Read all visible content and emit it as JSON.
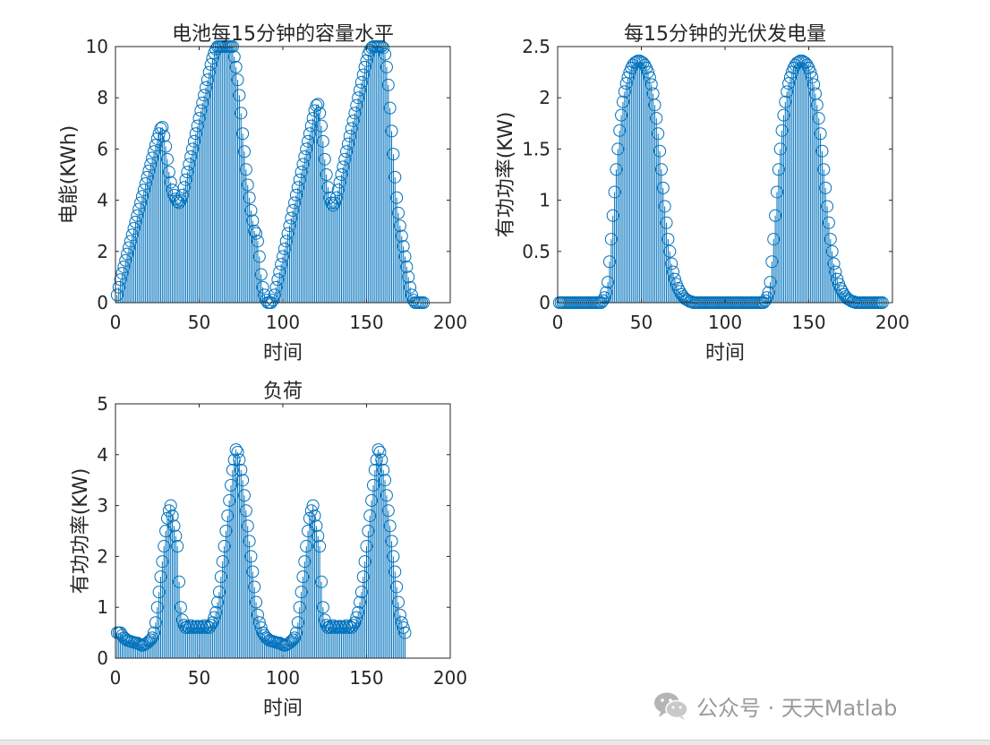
{
  "chart_data": [
    {
      "type": "stem",
      "title": "电池每15分钟的容量水平",
      "xlabel": "时间",
      "ylabel": "电能(KWh)",
      "xlim": [
        0,
        200
      ],
      "ylim": [
        0,
        10
      ],
      "xticks": [
        0,
        50,
        100,
        150,
        200
      ],
      "yticks": [
        0,
        2,
        4,
        6,
        8,
        10
      ],
      "color": "#0072BD",
      "marker": "circle",
      "y": [
        0.3,
        0.6,
        0.9,
        1.15,
        1.4,
        1.65,
        1.9,
        2.15,
        2.4,
        2.65,
        2.9,
        3.15,
        3.4,
        3.65,
        3.9,
        4.15,
        4.4,
        4.65,
        4.9,
        5.15,
        5.4,
        5.65,
        5.9,
        6.15,
        6.4,
        6.6,
        6.8,
        6.85,
        6.5,
        6.1,
        5.6,
        5.1,
        4.7,
        4.4,
        4.2,
        4.05,
        3.95,
        3.9,
        4.0,
        4.2,
        4.5,
        4.8,
        5.1,
        5.4,
        5.7,
        6.0,
        6.3,
        6.6,
        6.9,
        7.2,
        7.5,
        7.8,
        8.1,
        8.4,
        8.7,
        9.0,
        9.3,
        9.55,
        9.75,
        9.9,
        10.0,
        10.0,
        10.0,
        10.0,
        10.0,
        10.0,
        10.0,
        10.0,
        10.0,
        10.0,
        9.6,
        9.2,
        8.7,
        8.1,
        7.4,
        6.6,
        5.9,
        5.2,
        4.6,
        4.1,
        3.6,
        3.2,
        2.8,
        2.7,
        2.4,
        1.8,
        1.1,
        0.6,
        0.3,
        0.1,
        0.0,
        0.0,
        0.0,
        0.1,
        0.3,
        0.6,
        0.9,
        1.2,
        1.5,
        1.8,
        2.1,
        2.4,
        2.7,
        3.0,
        3.3,
        3.6,
        3.9,
        4.2,
        4.5,
        4.8,
        5.1,
        5.4,
        5.7,
        6.0,
        6.3,
        6.6,
        6.9,
        7.2,
        7.5,
        7.7,
        7.75,
        7.4,
        6.9,
        6.3,
        5.6,
        5.0,
        4.5,
        4.1,
        3.9,
        3.8,
        3.9,
        4.1,
        4.4,
        4.7,
        5.0,
        5.3,
        5.6,
        5.9,
        6.2,
        6.5,
        6.8,
        7.1,
        7.4,
        7.7,
        8.0,
        8.3,
        8.6,
        8.9,
        9.2,
        9.45,
        9.7,
        9.85,
        9.95,
        10.0,
        10.0,
        10.0,
        10.0,
        10.0,
        10.0,
        9.95,
        9.7,
        9.2,
        8.5,
        7.6,
        6.7,
        5.8,
        4.9,
        4.1,
        3.5,
        3.0,
        2.6,
        2.2,
        1.8,
        1.4,
        1.0,
        0.6,
        0.3,
        0.1,
        0.0,
        0.0,
        0.0,
        0.0,
        0.0,
        0.0
      ]
    },
    {
      "type": "stem",
      "title": "每15分钟的光伏发电量",
      "xlabel": "时间",
      "ylabel": "有功功率(KW)",
      "xlim": [
        0,
        200
      ],
      "ylim": [
        0,
        2.5
      ],
      "xticks": [
        0,
        50,
        100,
        150,
        200
      ],
      "yticks": [
        0,
        0.5,
        1,
        1.5,
        2,
        2.5
      ],
      "yticklabels": [
        "0",
        "0.5",
        "1",
        "1.5",
        "2",
        "2.5"
      ],
      "color": "#0072BD",
      "marker": "circle",
      "y": [
        0,
        0,
        0,
        0,
        0,
        0,
        0,
        0,
        0,
        0,
        0,
        0,
        0,
        0,
        0,
        0,
        0,
        0,
        0,
        0,
        0,
        0,
        0,
        0,
        0,
        0,
        0.02,
        0.05,
        0.1,
        0.2,
        0.4,
        0.62,
        0.85,
        1.08,
        1.3,
        1.5,
        1.68,
        1.83,
        1.96,
        2.06,
        2.14,
        2.2,
        2.25,
        2.29,
        2.32,
        2.34,
        2.35,
        2.36,
        2.36,
        2.35,
        2.34,
        2.32,
        2.29,
        2.25,
        2.2,
        2.13,
        2.04,
        1.93,
        1.8,
        1.65,
        1.48,
        1.3,
        1.12,
        0.94,
        0.78,
        0.62,
        0.5,
        0.38,
        0.3,
        0.23,
        0.18,
        0.14,
        0.11,
        0.08,
        0.06,
        0.04,
        0.03,
        0.02,
        0.01,
        0.01,
        0,
        0,
        0,
        0,
        0,
        0,
        0,
        0,
        0,
        0,
        0,
        0,
        0,
        0,
        0,
        0,
        0,
        0,
        0,
        0,
        0,
        0,
        0,
        0,
        0,
        0,
        0,
        0,
        0,
        0,
        0,
        0,
        0,
        0,
        0,
        0,
        0,
        0,
        0,
        0,
        0,
        0,
        0,
        0.02,
        0.05,
        0.1,
        0.2,
        0.4,
        0.62,
        0.85,
        1.08,
        1.3,
        1.5,
        1.68,
        1.83,
        1.96,
        2.06,
        2.14,
        2.2,
        2.25,
        2.29,
        2.32,
        2.34,
        2.35,
        2.36,
        2.36,
        2.35,
        2.34,
        2.32,
        2.29,
        2.25,
        2.2,
        2.13,
        2.04,
        1.93,
        1.8,
        1.65,
        1.48,
        1.3,
        1.12,
        0.94,
        0.78,
        0.62,
        0.5,
        0.38,
        0.3,
        0.23,
        0.18,
        0.14,
        0.11,
        0.08,
        0.06,
        0.04,
        0.03,
        0.02,
        0.01,
        0.01,
        0,
        0,
        0,
        0,
        0,
        0,
        0,
        0,
        0,
        0,
        0,
        0,
        0,
        0,
        0,
        0,
        0
      ]
    },
    {
      "type": "stem",
      "title": "负荷",
      "xlabel": "时间",
      "ylabel": "有功功率(KW)",
      "xlim": [
        0,
        200
      ],
      "ylim": [
        0,
        5
      ],
      "xticks": [
        0,
        50,
        100,
        150,
        200
      ],
      "yticks": [
        0,
        1,
        2,
        3,
        4,
        5
      ],
      "color": "#0072BD",
      "marker": "circle",
      "y": [
        0.5,
        0.5,
        0.5,
        0.45,
        0.4,
        0.38,
        0.35,
        0.34,
        0.33,
        0.32,
        0.31,
        0.3,
        0.3,
        0.28,
        0.26,
        0.25,
        0.26,
        0.28,
        0.3,
        0.33,
        0.36,
        0.4,
        0.5,
        0.7,
        1.0,
        1.3,
        1.6,
        1.9,
        2.2,
        2.5,
        2.75,
        2.9,
        3.0,
        2.8,
        2.6,
        2.4,
        2.2,
        1.5,
        1.0,
        0.75,
        0.65,
        0.6,
        0.62,
        0.6,
        0.64,
        0.6,
        0.62,
        0.6,
        0.63,
        0.6,
        0.62,
        0.6,
        0.64,
        0.6,
        0.62,
        0.6,
        0.65,
        0.7,
        0.8,
        0.9,
        1.1,
        1.3,
        1.6,
        1.9,
        2.2,
        2.5,
        2.8,
        3.1,
        3.4,
        3.7,
        3.9,
        4.1,
        4.05,
        3.9,
        3.7,
        3.5,
        3.2,
        2.9,
        2.6,
        2.3,
        2.0,
        1.7,
        1.4,
        1.1,
        0.85,
        0.7,
        0.6,
        0.5,
        0.45,
        0.4,
        0.38,
        0.35,
        0.34,
        0.33,
        0.32,
        0.31,
        0.3,
        0.3,
        0.28,
        0.26,
        0.25,
        0.26,
        0.28,
        0.3,
        0.33,
        0.36,
        0.4,
        0.5,
        0.7,
        1.0,
        1.3,
        1.6,
        1.9,
        2.2,
        2.5,
        2.75,
        2.9,
        3.0,
        2.8,
        2.6,
        2.4,
        2.2,
        1.5,
        1.0,
        0.75,
        0.65,
        0.6,
        0.62,
        0.6,
        0.64,
        0.6,
        0.62,
        0.6,
        0.63,
        0.6,
        0.62,
        0.6,
        0.64,
        0.6,
        0.62,
        0.6,
        0.65,
        0.7,
        0.8,
        0.9,
        1.1,
        1.3,
        1.6,
        1.9,
        2.2,
        2.5,
        2.8,
        3.1,
        3.4,
        3.7,
        3.9,
        4.1,
        4.05,
        3.9,
        3.7,
        3.5,
        3.2,
        2.9,
        2.6,
        2.3,
        2.0,
        1.7,
        1.4,
        1.1,
        0.85,
        0.7,
        0.6,
        0.5
      ]
    }
  ],
  "watermark": {
    "icon": "wechat-icon",
    "text": "公众号 · 天天Matlab"
  }
}
